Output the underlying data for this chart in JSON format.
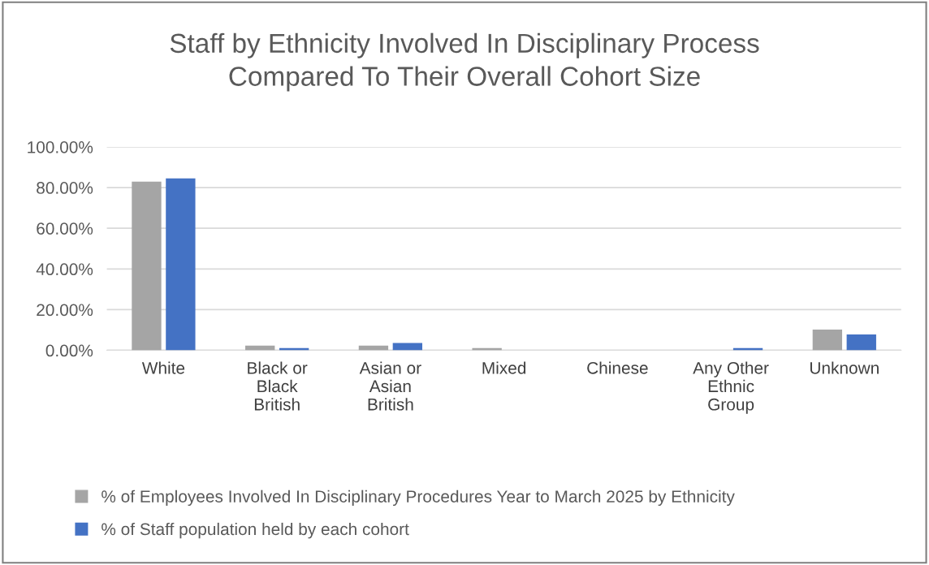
{
  "chart_data": {
    "type": "bar",
    "title": "Staff by Ethnicity Involved In Disciplinary Process\nCompared To Their Overall Cohort Size",
    "categories": [
      "White",
      "Black or\nBlack\nBritish",
      "Asian or\nAsian\nBritish",
      "Mixed",
      "Chinese",
      "Any Other\nEthnic\nGroup",
      "Unknown"
    ],
    "series": [
      {
        "name": "% of Employees Involved In Disciplinary Procedures Year to March 2025 by Ethnicity",
        "color": "#a5a5a5",
        "values": [
          82.9,
          2.3,
          2.3,
          1.1,
          0,
          0,
          10.2
        ]
      },
      {
        "name": "% of Staff population held by each cohort",
        "color": "#4472c4",
        "values": [
          84.5,
          1.1,
          3.6,
          0,
          0,
          1.1,
          7.8
        ]
      }
    ],
    "ylim": [
      0,
      100
    ],
    "yticks": [
      {
        "value": 0,
        "label": "0.00%"
      },
      {
        "value": 20,
        "label": "20.00%"
      },
      {
        "value": 40,
        "label": "40.00%"
      },
      {
        "value": 60,
        "label": "60.00%"
      },
      {
        "value": 80,
        "label": "80.00%"
      },
      {
        "value": 100,
        "label": "100.00%"
      }
    ],
    "grid": "y",
    "legend": "bottom"
  }
}
